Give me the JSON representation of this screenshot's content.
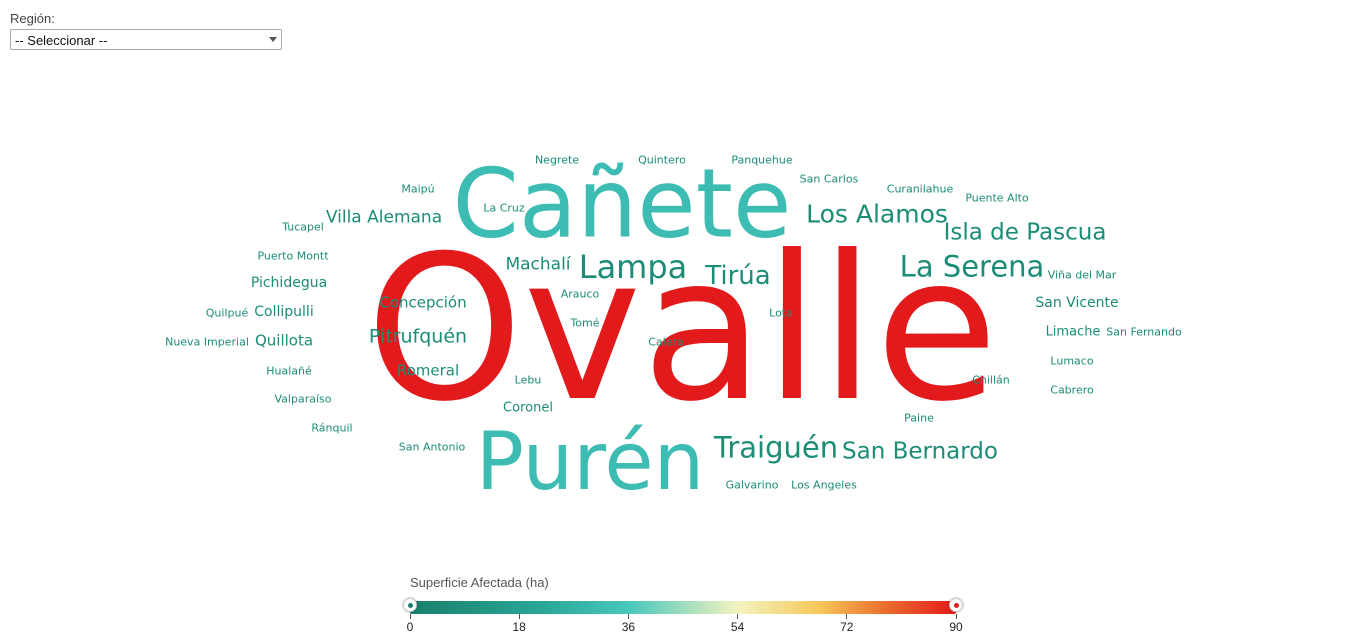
{
  "filter": {
    "label": "Región:",
    "selected": "-- Seleccionar --"
  },
  "colors": {
    "low": "#1a7f6b",
    "mid": "#3dbcb3",
    "high": "#e31a1c"
  },
  "words": [
    {
      "text": "Ovalle",
      "color": "#e31a1c"
    },
    {
      "text": "Cañete",
      "color": "#3dbcb3"
    },
    {
      "text": "Purén",
      "color": "#3dbcb3"
    },
    {
      "text": "Lampa",
      "color": "#1b8c76"
    },
    {
      "text": "Tirúa",
      "color": "#1b8c76"
    },
    {
      "text": "Los Alamos",
      "color": "#1b8c76"
    },
    {
      "text": "La Serena",
      "color": "#1b8c76"
    },
    {
      "text": "Isla de Pascua",
      "color": "#1b8c76"
    },
    {
      "text": "Traiguén",
      "color": "#1b8c76"
    },
    {
      "text": "San Bernardo",
      "color": "#1b8c76"
    },
    {
      "text": "Villa Alemana",
      "color": "#1b8c76"
    },
    {
      "text": "Machalí",
      "color": "#1b8c76"
    },
    {
      "text": "Pitrufquén",
      "color": "#1b8c76"
    },
    {
      "text": "Concepción",
      "color": "#1b8c76"
    },
    {
      "text": "Romeral",
      "color": "#1b8c76"
    },
    {
      "text": "Collipulli",
      "color": "#1b8c76"
    },
    {
      "text": "Quillota",
      "color": "#1b8c76"
    },
    {
      "text": "Pichidegua",
      "color": "#1b8c76"
    },
    {
      "text": "San Vicente",
      "color": "#1b8c76"
    },
    {
      "text": "Limache",
      "color": "#1b8c76"
    },
    {
      "text": "Coronel",
      "color": "#1b8c76"
    },
    {
      "text": "Negrete",
      "color": "#1b8c76"
    },
    {
      "text": "Quintero",
      "color": "#1b8c76"
    },
    {
      "text": "Panquehue",
      "color": "#1b8c76"
    },
    {
      "text": "San Carlos",
      "color": "#1b8c76"
    },
    {
      "text": "Curanilahue",
      "color": "#1b8c76"
    },
    {
      "text": "Puente Alto",
      "color": "#1b8c76"
    },
    {
      "text": "Maipú",
      "color": "#1b8c76"
    },
    {
      "text": "La Cruz",
      "color": "#1b8c76"
    },
    {
      "text": "Tucapel",
      "color": "#1b8c76"
    },
    {
      "text": "Puerto Montt",
      "color": "#1b8c76"
    },
    {
      "text": "Viña del Mar",
      "color": "#1b8c76"
    },
    {
      "text": "Arauco",
      "color": "#1b8c76"
    },
    {
      "text": "Quilpué",
      "color": "#1b8c76"
    },
    {
      "text": "Lota",
      "color": "#1b8c76"
    },
    {
      "text": "Tomé",
      "color": "#1b8c76"
    },
    {
      "text": "San Fernando",
      "color": "#1b8c76"
    },
    {
      "text": "Nueva Imperial",
      "color": "#1b8c76"
    },
    {
      "text": "Calera",
      "color": "#1b8c76"
    },
    {
      "text": "Lumaco",
      "color": "#1b8c76"
    },
    {
      "text": "Hualañé",
      "color": "#1b8c76"
    },
    {
      "text": "Lebu",
      "color": "#1b8c76"
    },
    {
      "text": "Chillán",
      "color": "#1b8c76"
    },
    {
      "text": "Cabrero",
      "color": "#1b8c76"
    },
    {
      "text": "Valparaíso",
      "color": "#1b8c76"
    },
    {
      "text": "Paine",
      "color": "#1b8c76"
    },
    {
      "text": "Ránquil",
      "color": "#1b8c76"
    },
    {
      "text": "San Antonio",
      "color": "#1b8c76"
    },
    {
      "text": "Galvarino",
      "color": "#1b8c76"
    },
    {
      "text": "Los Angeles",
      "color": "#1b8c76"
    }
  ],
  "legend": {
    "title": "Superficie Afectada (ha)",
    "min": 0,
    "max": 90,
    "range_low": 0,
    "range_high": 90,
    "ticks": [
      "0",
      "18",
      "36",
      "54",
      "72",
      "90"
    ]
  }
}
